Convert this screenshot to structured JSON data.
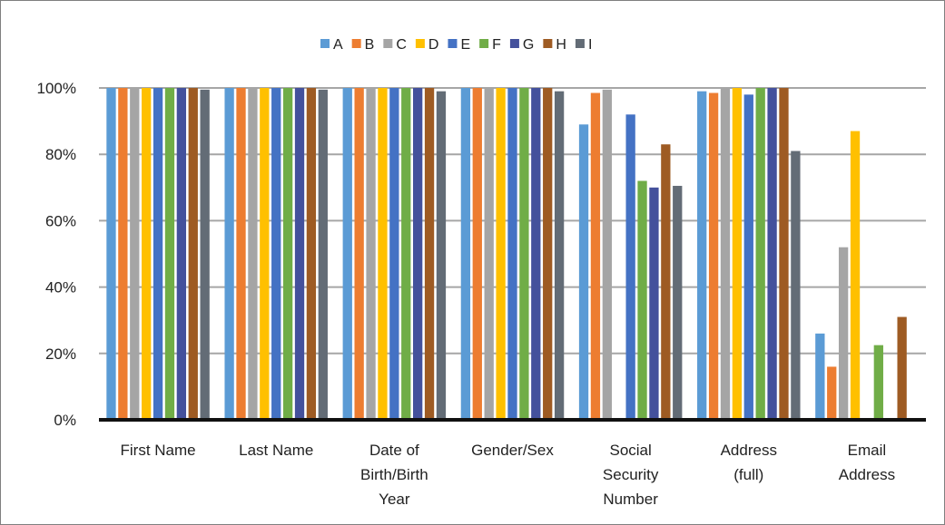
{
  "chart_data": {
    "type": "bar",
    "title": "",
    "xlabel": "",
    "ylabel": "",
    "ylim": [
      0,
      100
    ],
    "y_ticks": [
      "0%",
      "20%",
      "40%",
      "60%",
      "80%",
      "100%"
    ],
    "y_tick_values": [
      0,
      20,
      40,
      60,
      80,
      100
    ],
    "grid": true,
    "legend_position": "top",
    "categories": [
      [
        "First Name"
      ],
      [
        "Last Name"
      ],
      [
        "Date of",
        "Birth/Birth",
        "Year"
      ],
      [
        "Gender/Sex"
      ],
      [
        "Social",
        "Security",
        "Number"
      ],
      [
        "Address",
        "(full)"
      ],
      [
        "Email",
        "Address"
      ]
    ],
    "series": [
      {
        "name": "A",
        "color": "#5b9bd5",
        "values": [
          100,
          100,
          100,
          100,
          89,
          99,
          26
        ]
      },
      {
        "name": "B",
        "color": "#ed7d31",
        "values": [
          100,
          100,
          100,
          100,
          98.5,
          98.5,
          16
        ]
      },
      {
        "name": "C",
        "color": "#a5a5a5",
        "values": [
          100,
          100,
          100,
          100,
          99.5,
          100,
          52
        ]
      },
      {
        "name": "D",
        "color": "#ffc000",
        "values": [
          100,
          100,
          100,
          100,
          0,
          100,
          87
        ]
      },
      {
        "name": "E",
        "color": "#4472c4",
        "values": [
          100,
          100,
          100,
          100,
          92,
          98,
          0
        ]
      },
      {
        "name": "F",
        "color": "#70ad47",
        "values": [
          100,
          100,
          100,
          100,
          72,
          100,
          22.5
        ]
      },
      {
        "name": "G",
        "color": "#44519c",
        "values": [
          100,
          100,
          100,
          100,
          70,
          100,
          0
        ]
      },
      {
        "name": "H",
        "color": "#9e5b23",
        "values": [
          100,
          100,
          100,
          100,
          83,
          100,
          31
        ]
      },
      {
        "name": "I",
        "color": "#636c76",
        "values": [
          99.5,
          99.5,
          99,
          99,
          70.5,
          81,
          0
        ]
      }
    ]
  }
}
